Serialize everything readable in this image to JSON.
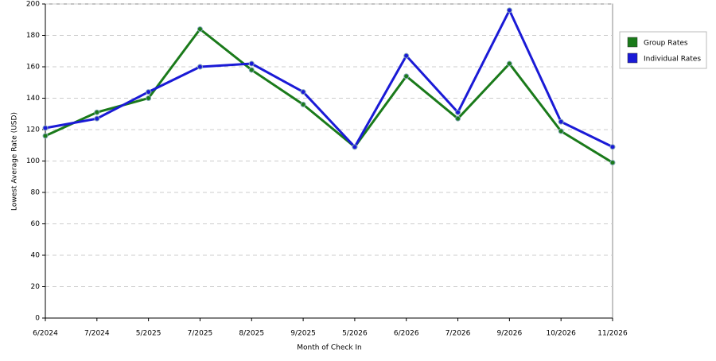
{
  "chart_data": {
    "type": "line",
    "x_label": "Month of Check In",
    "y_label": "Lowest Average Rate (USD)",
    "categories": [
      "6/2024",
      "7/2024",
      "5/2025",
      "7/2025",
      "8/2025",
      "9/2025",
      "5/2026",
      "6/2026",
      "7/2026",
      "9/2026",
      "10/2026",
      "11/2026"
    ],
    "series": [
      {
        "name": "Group Rates",
        "color": "#1a7a1a",
        "values": [
          116,
          131,
          140,
          184,
          158,
          136,
          109,
          154,
          127,
          162,
          119,
          99
        ]
      },
      {
        "name": "Individual Rates",
        "color": "#1a1ad6",
        "values": [
          121,
          127,
          144,
          160,
          162,
          144,
          109,
          167,
          131,
          196,
          125,
          109
        ]
      }
    ],
    "ylim": [
      0,
      200
    ],
    "yticks": [
      0,
      20,
      40,
      60,
      80,
      100,
      120,
      140,
      160,
      180,
      200
    ],
    "grid": true,
    "legend": "right"
  }
}
